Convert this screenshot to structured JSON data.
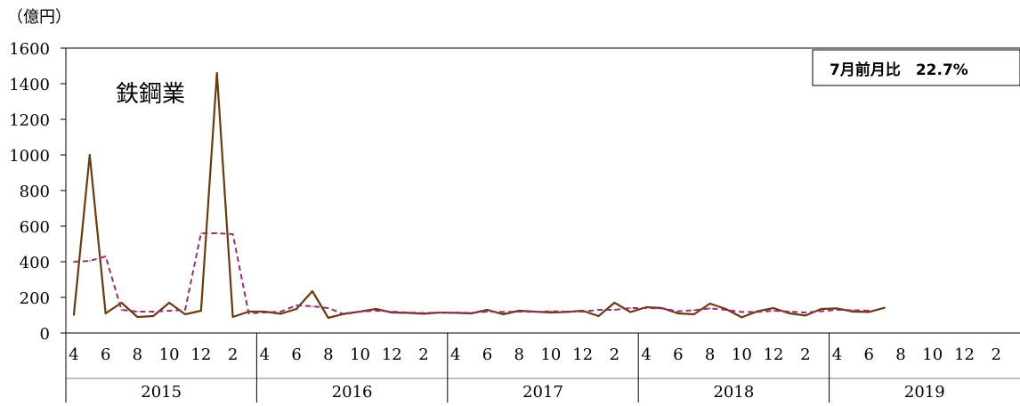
{
  "chart_data": {
    "type": "line",
    "unit_label": "（億円）",
    "annotation_title": "鉄鋼業",
    "annotation_box": "7月前月比　22.7%",
    "ylim": [
      0,
      1600
    ],
    "y_ticks": [
      "0",
      "200",
      "400",
      "600",
      "800",
      "1000",
      "1200",
      "1400",
      "1600"
    ],
    "grid": false,
    "x_month_ticks": [
      "4",
      "6",
      "8",
      "10",
      "12",
      "2",
      "4",
      "6",
      "8",
      "10",
      "12",
      "2",
      "4",
      "6",
      "8",
      "10",
      "12",
      "2",
      "4",
      "6",
      "8",
      "10",
      "12",
      "2",
      "4",
      "6",
      "8",
      "10",
      "12",
      "2"
    ],
    "fiscal_years": [
      "2015",
      "2016",
      "2017",
      "2018",
      "2019"
    ],
    "colors": {
      "actual": "#6b3a0e",
      "trend": "#9b2d6e"
    },
    "series": [
      {
        "values": [
          100,
          1000,
          110,
          170,
          90,
          95,
          170,
          105,
          125,
          1460,
          90,
          120,
          120,
          108,
          135,
          235,
          85,
          108,
          120,
          135,
          115,
          113,
          108,
          115,
          113,
          110,
          130,
          105,
          125,
          120,
          115,
          118,
          125,
          95,
          170,
          118,
          145,
          140,
          110,
          105,
          165,
          135,
          88,
          122,
          140,
          110,
          98,
          135,
          138,
          120,
          118,
          142
        ],
        "style": "solid"
      },
      {
        "values": [
          400,
          405,
          430,
          130,
          120,
          120,
          125,
          130,
          560,
          560,
          555,
          110,
          115,
          120,
          155,
          150,
          140,
          105,
          120,
          125,
          120,
          115,
          112,
          115,
          115,
          113,
          120,
          118,
          120,
          118,
          122,
          120,
          120,
          130,
          130,
          140,
          140,
          138,
          122,
          128,
          138,
          130,
          118,
          118,
          125,
          120,
          115,
          122,
          130,
          128,
          125
        ],
        "style": "dashed"
      }
    ]
  }
}
